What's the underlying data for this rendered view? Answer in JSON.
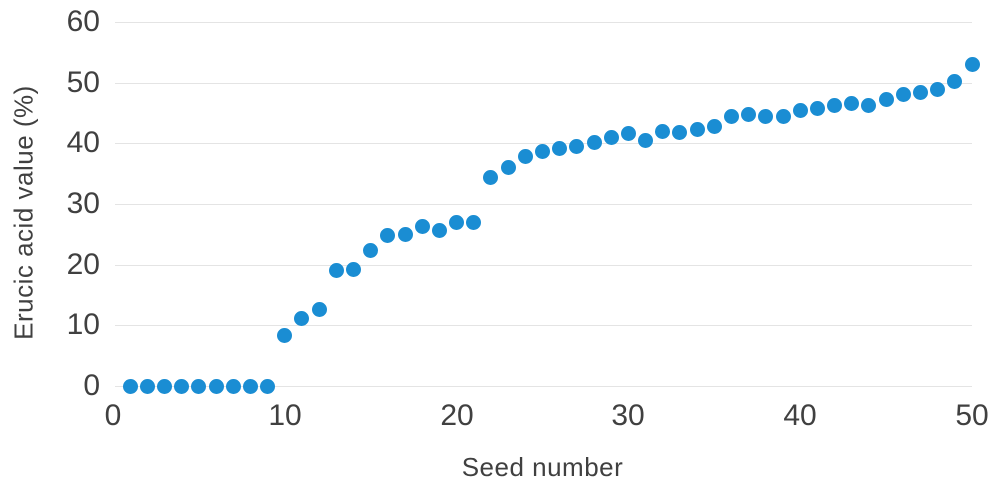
{
  "chart": {
    "colors": {
      "point": "#1a8dd3",
      "grid": "#e4e4e4",
      "text": "#404040",
      "background": "#ffffff"
    }
  },
  "chart_data": {
    "type": "scatter",
    "title": "",
    "xlabel": "Seed number",
    "ylabel": "Erucic acid value (%)",
    "xlim": [
      0,
      50
    ],
    "ylim": [
      0,
      60
    ],
    "x_ticks": [
      0,
      10,
      20,
      30,
      40,
      50
    ],
    "y_ticks": [
      0,
      10,
      20,
      30,
      40,
      50,
      60
    ],
    "grid": "horizontal-only",
    "legend_position": "none",
    "marker": "filled-circle",
    "x": [
      1,
      2,
      3,
      4,
      5,
      6,
      7,
      8,
      9,
      10,
      11,
      12,
      13,
      14,
      15,
      16,
      17,
      18,
      19,
      20,
      21,
      22,
      23,
      24,
      25,
      26,
      27,
      28,
      29,
      30,
      31,
      32,
      33,
      34,
      35,
      36,
      37,
      38,
      39,
      40,
      41,
      42,
      43,
      44,
      45,
      46,
      47,
      48,
      49,
      50
    ],
    "y": [
      0,
      0,
      0,
      0,
      0,
      0,
      0,
      0,
      0,
      8.3,
      11.1,
      12.6,
      19.0,
      19.2,
      22.4,
      24.8,
      25.0,
      26.3,
      25.7,
      26.9,
      27.0,
      34.3,
      36.0,
      37.8,
      38.6,
      39.2,
      39.4,
      40.2,
      40.9,
      41.6,
      40.4,
      42.0,
      41.8,
      42.2,
      42.7,
      44.5,
      44.8,
      44.4,
      44.4,
      45.4,
      45.7,
      46.2,
      46.5,
      46.2,
      47.3,
      48.0,
      48.3,
      48.9,
      50.2,
      53.0
    ]
  }
}
